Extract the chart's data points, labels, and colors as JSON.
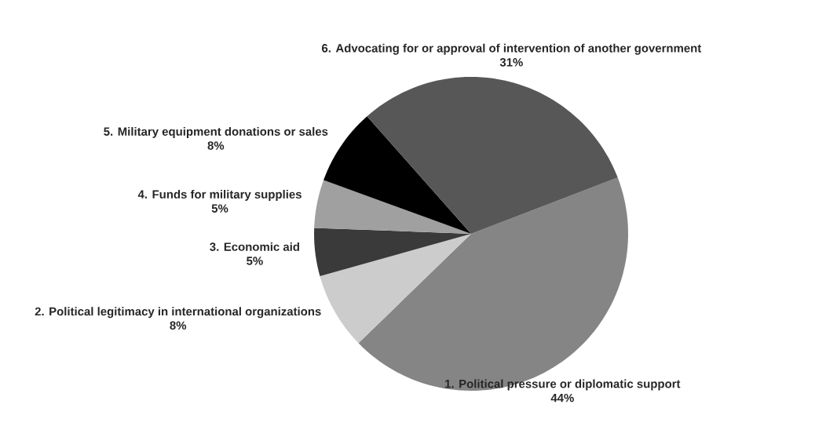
{
  "chart_data": {
    "type": "pie",
    "categories": [
      "1. Political pressure or diplomatic support",
      "2. Political legitimacy in international organizations",
      "3. Economic aid",
      "4. Funds for military supplies",
      "5. Military equipment donations or sales",
      "6. Advocating for or approval of intervention of another government"
    ],
    "values": [
      44,
      8,
      5,
      5,
      8,
      31
    ],
    "value_labels": [
      "44%",
      "8%",
      "5%",
      "5%",
      "8%",
      "31%"
    ],
    "colors": [
      "#858585",
      "#cccccc",
      "#3a3a3a",
      "#a0a0a0",
      "#000000",
      "#575757"
    ]
  }
}
